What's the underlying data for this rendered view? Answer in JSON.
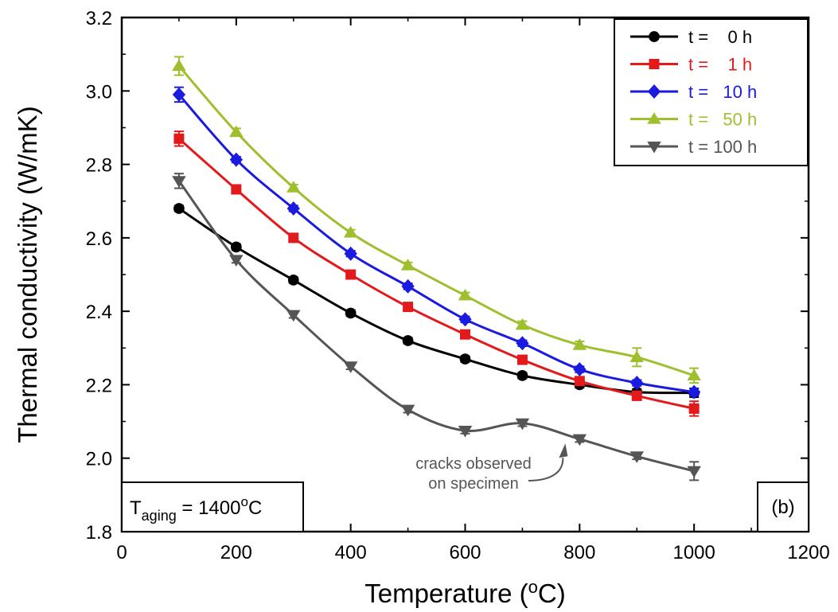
{
  "chart_data": {
    "type": "line",
    "xlabel": "Temperature (",
    "xlabel_sup": "o",
    "xlabel_tail": "C)",
    "ylabel": "Thermal conductivity (W/mK)",
    "xlim": [
      0,
      1200
    ],
    "ylim": [
      1.8,
      3.2
    ],
    "x_ticks": [
      0,
      200,
      400,
      600,
      800,
      1000,
      1200
    ],
    "y_ticks": [
      1.8,
      2.0,
      2.2,
      2.4,
      2.6,
      2.8,
      3.0,
      3.2
    ],
    "x_tick_labels": [
      "0",
      "200",
      "400",
      "600",
      "800",
      "1000",
      "1200"
    ],
    "y_tick_labels": [
      "1.8",
      "2.0",
      "2.2",
      "2.4",
      "2.6",
      "2.8",
      "3.0",
      "3.2"
    ],
    "legend_position": "top-right",
    "series": [
      {
        "name": "t =    0 h",
        "color": "#000000",
        "marker": "circle",
        "x": [
          100,
          200,
          300,
          400,
          500,
          600,
          700,
          800,
          900,
          1000
        ],
        "y": [
          2.68,
          2.575,
          2.485,
          2.395,
          2.32,
          2.27,
          2.225,
          2.2,
          2.18,
          2.178
        ],
        "err": [
          0.008,
          0.008,
          0.008,
          0.008,
          0.008,
          0.008,
          0.008,
          0.008,
          0.008,
          0.012
        ]
      },
      {
        "name": "t =    1 h",
        "color": "#e31a1c",
        "marker": "square",
        "x": [
          100,
          200,
          300,
          400,
          500,
          600,
          700,
          800,
          900,
          1000
        ],
        "y": [
          2.87,
          2.732,
          2.6,
          2.5,
          2.412,
          2.337,
          2.268,
          2.21,
          2.17,
          2.135
        ],
        "err": [
          0.02,
          0.008,
          0.008,
          0.008,
          0.008,
          0.008,
          0.008,
          0.008,
          0.012,
          0.02
        ]
      },
      {
        "name": "t =   10 h",
        "color": "#1a1ae0",
        "marker": "diamond",
        "x": [
          100,
          200,
          300,
          400,
          500,
          600,
          700,
          800,
          900,
          1000
        ],
        "y": [
          2.99,
          2.813,
          2.68,
          2.557,
          2.468,
          2.378,
          2.313,
          2.242,
          2.205,
          2.18
        ],
        "err": [
          0.02,
          0.008,
          0.008,
          0.008,
          0.008,
          0.008,
          0.008,
          0.008,
          0.008,
          0.01
        ]
      },
      {
        "name": "t =   50 h",
        "color": "#9fbf2f",
        "marker": "triangle-up",
        "x": [
          100,
          200,
          300,
          400,
          500,
          600,
          700,
          800,
          900,
          1000
        ],
        "y": [
          3.068,
          2.888,
          2.737,
          2.614,
          2.525,
          2.443,
          2.363,
          2.308,
          2.275,
          2.225
        ],
        "err": [
          0.025,
          0.01,
          0.008,
          0.008,
          0.008,
          0.008,
          0.01,
          0.01,
          0.025,
          0.02
        ]
      },
      {
        "name": "t = 100 h",
        "color": "#555555",
        "marker": "triangle-down",
        "x": [
          100,
          200,
          300,
          400,
          500,
          600,
          700,
          800,
          900,
          1000
        ],
        "y": [
          2.755,
          2.54,
          2.39,
          2.25,
          2.132,
          2.075,
          2.095,
          2.052,
          2.005,
          1.965
        ],
        "err": [
          0.02,
          0.008,
          0.008,
          0.008,
          0.008,
          0.008,
          0.008,
          0.008,
          0.008,
          0.025
        ]
      }
    ],
    "annotations": {
      "cracks_line1": "cracks observed",
      "cracks_line2": "on specimen",
      "cracks_arrow_target": {
        "x": 775,
        "y": 2.04
      },
      "aging_prefix": "T",
      "aging_sub": "aging",
      "aging_eq": " = 1400",
      "aging_sup": "o",
      "aging_tail": "C",
      "panel_label": "(b)"
    }
  }
}
